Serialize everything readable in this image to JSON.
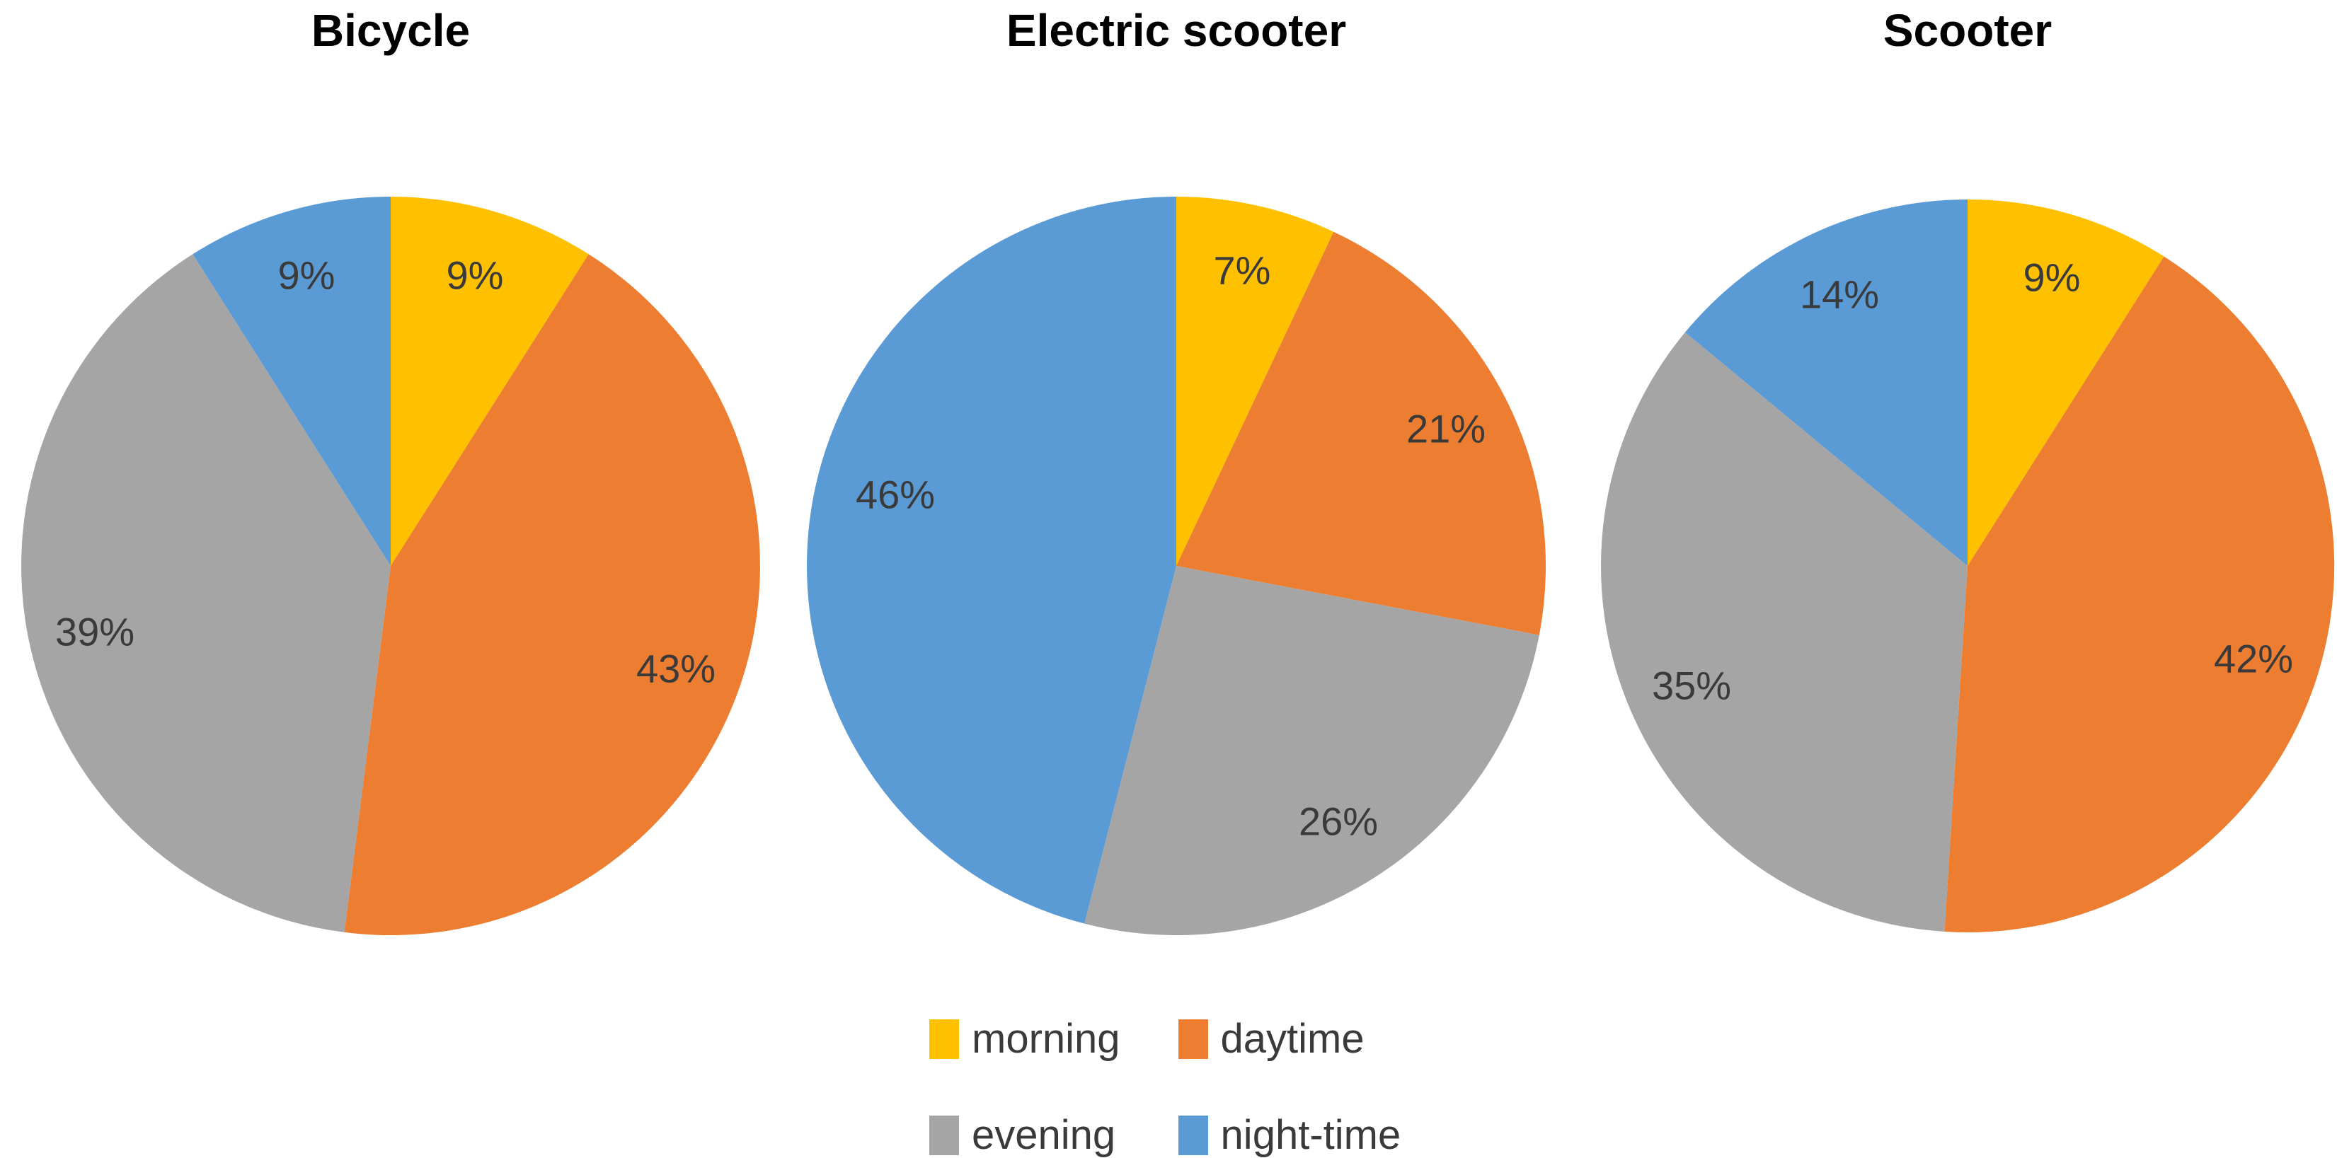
{
  "figure": {
    "background_color": "#FFFFFF",
    "title_text_color": "#000000",
    "label_text_color": "#3A3A3A"
  },
  "palette": {
    "morning": "#FFC000",
    "daytime": "#ED7D31",
    "evening": "#A5A5A5",
    "night_time": "#5B9BD5"
  },
  "legend": {
    "position": "bottom-center",
    "rows": 2,
    "columns": 2,
    "items": [
      {
        "label": "morning",
        "color": "#FFC000"
      },
      {
        "label": "daytime",
        "color": "#ED7D31"
      },
      {
        "label": "evening",
        "color": "#A5A5A5"
      },
      {
        "label": "night-time",
        "color": "#5B9BD5"
      }
    ]
  },
  "chart_data": [
    {
      "type": "pie",
      "title": "Bicycle",
      "categories": [
        "morning",
        "daytime",
        "evening",
        "night-time"
      ],
      "values": [
        9,
        43,
        39,
        9
      ],
      "labels": [
        "9%",
        "43%",
        "39%",
        "9%"
      ],
      "colors": [
        "#FFC000",
        "#ED7D31",
        "#A5A5A5",
        "#5B9BD5"
      ],
      "unit": "percent",
      "start_angle_deg": 0,
      "direction": "clockwise",
      "label_placement": "inside"
    },
    {
      "type": "pie",
      "title": "Electric scooter",
      "categories": [
        "morning",
        "daytime",
        "evening",
        "night-time"
      ],
      "values": [
        7,
        21,
        26,
        46
      ],
      "labels": [
        "7%",
        "21%",
        "26%",
        "46%"
      ],
      "colors": [
        "#FFC000",
        "#ED7D31",
        "#A5A5A5",
        "#5B9BD5"
      ],
      "unit": "percent",
      "start_angle_deg": 0,
      "direction": "clockwise",
      "label_placement": "inside"
    },
    {
      "type": "pie",
      "title": "Scooter",
      "categories": [
        "morning",
        "daytime",
        "evening",
        "night-time"
      ],
      "values": [
        9,
        42,
        35,
        14
      ],
      "labels": [
        "9%",
        "42%",
        "35%",
        "14%"
      ],
      "colors": [
        "#FFC000",
        "#ED7D31",
        "#A5A5A5",
        "#5B9BD5"
      ],
      "unit": "percent",
      "start_angle_deg": 0,
      "direction": "clockwise",
      "label_placement": "inside"
    }
  ]
}
